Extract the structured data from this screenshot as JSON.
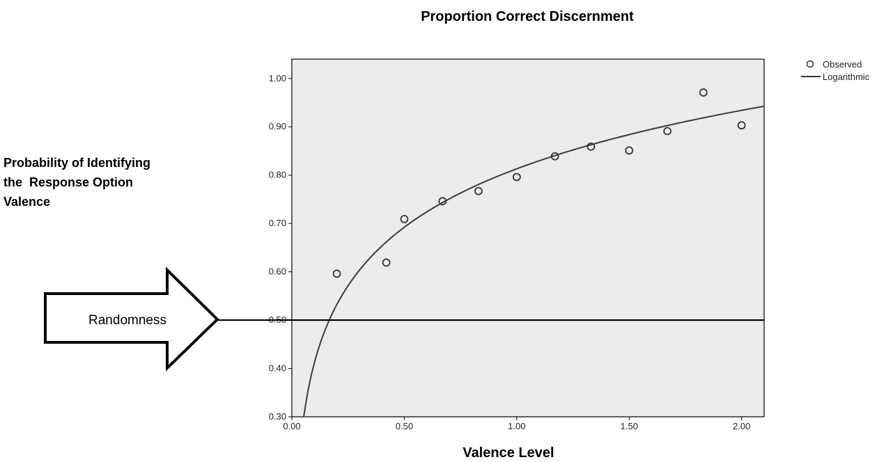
{
  "chart_data": {
    "type": "scatter",
    "title": "Proportion Correct Discernment",
    "xlabel": "Valence Level",
    "ylabel_lines": [
      "Probability of Identifying",
      "the  Response Option",
      "Valence"
    ],
    "xlim": [
      0.0,
      2.1
    ],
    "ylim": [
      0.3,
      1.04
    ],
    "x_ticks": [
      "0.00",
      "0.50",
      "1.00",
      "1.50",
      "2.00"
    ],
    "y_ticks": [
      "0.30",
      "0.40",
      "0.50",
      "0.60",
      "0.70",
      "0.80",
      "0.90",
      "1.00"
    ],
    "grid": false,
    "legend_position": "top-right",
    "series": [
      {
        "name": "Observed",
        "kind": "points",
        "x": [
          0.2,
          0.42,
          0.5,
          0.67,
          0.83,
          1.0,
          1.17,
          1.33,
          1.5,
          1.67,
          1.83,
          2.0
        ],
        "y": [
          0.596,
          0.619,
          0.709,
          0.746,
          0.767,
          0.796,
          0.839,
          0.859,
          0.851,
          0.891,
          0.971,
          0.903
        ]
      },
      {
        "name": "Logarithmic",
        "kind": "fit",
        "model": "y = a + b*ln(x)",
        "a": 0.8131,
        "b": 0.1745,
        "x_range": [
          0.053,
          2.1
        ]
      }
    ],
    "reference_line": {
      "y": 0.5
    },
    "annotation": {
      "text": "Randomness"
    },
    "colors": {
      "plot_background": "#ececec",
      "marks": "#333333",
      "axis": "#000000"
    }
  }
}
